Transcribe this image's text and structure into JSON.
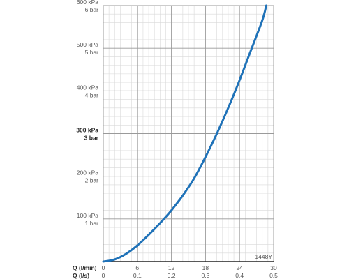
{
  "chart_data": {
    "type": "line",
    "y_ticks": [
      {
        "kpa": "600 kPa",
        "bar": "6 bar",
        "value": 600,
        "bold": false
      },
      {
        "kpa": "500 kPa",
        "bar": "5 bar",
        "value": 500,
        "bold": false
      },
      {
        "kpa": "400 kPa",
        "bar": "4 bar",
        "value": 400,
        "bold": false
      },
      {
        "kpa": "300 kPa",
        "bar": "3 bar",
        "value": 300,
        "bold": true
      },
      {
        "kpa": "200 kPa",
        "bar": "2 bar",
        "value": 200,
        "bold": false
      },
      {
        "kpa": "100 kPa",
        "bar": "1 bar",
        "value": 100,
        "bold": false
      }
    ],
    "x_axis_lmin": {
      "label": "Q (l/min)",
      "ticks": [
        "0",
        "6",
        "12",
        "18",
        "24",
        "30"
      ],
      "values": [
        0,
        6,
        12,
        18,
        24,
        30
      ]
    },
    "x_axis_ls": {
      "label": "Q (l/s)",
      "ticks": [
        "0",
        "0.1",
        "0.2",
        "0.3",
        "0.4",
        "0.5"
      ]
    },
    "xlim": [
      0,
      30
    ],
    "ylim": [
      0,
      600
    ],
    "grid": true,
    "code_label": "1448Y",
    "series": [
      {
        "color": "#1f72b8",
        "x": [
          0,
          2,
          4,
          6,
          8,
          10,
          12,
          14,
          16,
          18,
          20,
          22,
          24,
          26,
          28,
          28.7
        ],
        "y": [
          0,
          5,
          18,
          38,
          63,
          90,
          120,
          155,
          195,
          245,
          300,
          360,
          425,
          495,
          565,
          600
        ]
      }
    ]
  }
}
